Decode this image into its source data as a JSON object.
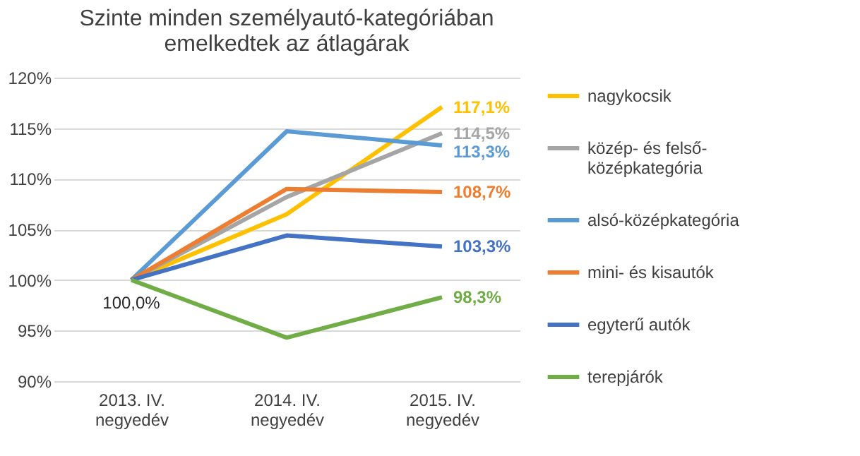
{
  "chart_data": {
    "type": "line",
    "title": "Szinte minden személyautó-kategóriában emelkedtek az átlagárak",
    "categories": [
      "2013. IV. negyedév",
      "2014. IV. negyedév",
      "2015. IV. negyedév"
    ],
    "series": [
      {
        "name": "nagykocsik",
        "color": "#ffc000",
        "values": [
          100.0,
          106.5,
          117.1
        ],
        "value_labels": [
          null,
          null,
          "117,1%"
        ]
      },
      {
        "name": "közép- és felső-középkategória",
        "color": "#a5a5a5",
        "values": [
          100.0,
          108.2,
          114.5
        ],
        "value_labels": [
          null,
          null,
          "114,5%"
        ]
      },
      {
        "name": "alsó-középkategória",
        "color": "#5b9bd5",
        "values": [
          100.0,
          114.7,
          113.3
        ],
        "value_labels": [
          null,
          null,
          "113,3%"
        ]
      },
      {
        "name": "mini- és kisautók",
        "color": "#ed7d31",
        "values": [
          100.0,
          109.0,
          108.7
        ],
        "value_labels": [
          null,
          null,
          "108,7%"
        ]
      },
      {
        "name": "egyterű autók",
        "color": "#4472c4",
        "values": [
          100.0,
          104.4,
          103.3
        ],
        "value_labels": [
          null,
          null,
          "103,3%"
        ]
      },
      {
        "name": "terepjárók",
        "color": "#70ad47",
        "values": [
          100.0,
          94.3,
          98.3
        ],
        "value_labels": [
          "100,0%",
          null,
          "98,3%"
        ]
      }
    ],
    "ylim": [
      90,
      120
    ],
    "yticks": [
      {
        "value": 90,
        "label": "90%"
      },
      {
        "value": 95,
        "label": "95%"
      },
      {
        "value": 100,
        "label": "100%"
      },
      {
        "value": 105,
        "label": "105%"
      },
      {
        "value": 110,
        "label": "110%"
      },
      {
        "value": 115,
        "label": "115%"
      },
      {
        "value": 120,
        "label": "120%"
      }
    ],
    "grid": "y",
    "legend": "right",
    "line_style": "solid"
  }
}
